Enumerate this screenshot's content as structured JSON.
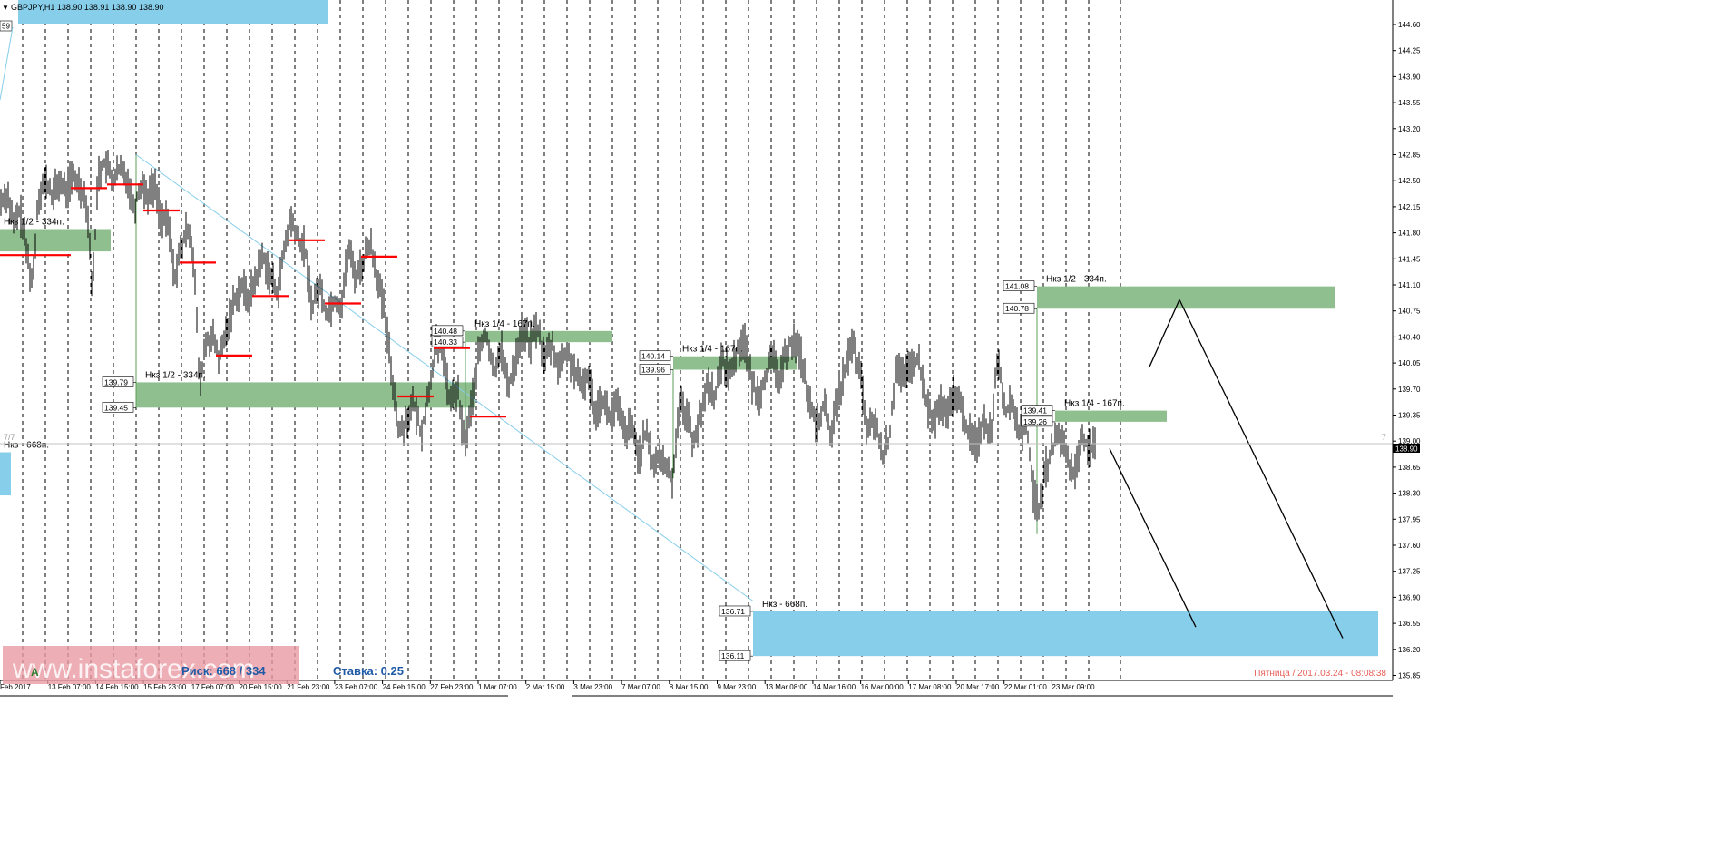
{
  "window": {
    "symbol_line": "GBPJPY,H1  138.90 138.91 138.90 138.90",
    "menu_icon": "triangle-down-icon"
  },
  "watermark": {
    "site": "www.instaforex.com",
    "bottom_text_left": "А",
    "bottom_text_risk": "Риск: 668 / 334",
    "bottom_text_rate": "Ставка: 0.25"
  },
  "timestamp": "Пятница  /  2017.03.24  -  08:08:38",
  "edge_labels": {
    "top_left_value": "59",
    "left_marker": "7/7",
    "right_marker": "7"
  },
  "price_axis": {
    "ticks": [
      "144.60",
      "144.25",
      "143.90",
      "143.55",
      "143.20",
      "142.85",
      "142.50",
      "142.15",
      "141.80",
      "141.45",
      "141.10",
      "140.75",
      "140.40",
      "140.05",
      "139.70",
      "139.35",
      "139.00",
      "138.65",
      "138.30",
      "137.95",
      "137.60",
      "137.25",
      "136.90",
      "136.55",
      "136.20",
      "135.85"
    ],
    "current_price": "138.90",
    "range": [
      135.85,
      144.85
    ]
  },
  "time_axis": {
    "labels": [
      "Feb 2017",
      "13 Feb 07:00",
      "14 Feb 15:00",
      "15 Feb 23:00",
      "17 Feb 07:00",
      "20 Feb 15:00",
      "21 Feb 23:00",
      "23 Feb 07:00",
      "24 Feb 15:00",
      "27 Feb 23:00",
      "1 Mar 07:00",
      "2 Mar 15:00",
      "3 Mar 23:00",
      "7 Mar 07:00",
      "8 Mar 15:00",
      "9 Mar 23:00",
      "13 Mar 08:00",
      "14 Mar 16:00",
      "16 Mar 00:00",
      "17 Mar 08:00",
      "20 Mar 17:00",
      "22 Mar 01:00",
      "23 Mar 09:00"
    ]
  },
  "zones": [
    {
      "label": "Нкз 1/2 - 334п.",
      "top": "",
      "bottom": "",
      "from": 0,
      "to": 122,
      "hi": 141.85,
      "lo": 141.55,
      "color": "#8fbf8f"
    },
    {
      "label": "Нкз 1/2 - 334п.",
      "top": "139.79",
      "bottom": "139.45",
      "from": 150,
      "to": 524,
      "hi": 139.79,
      "lo": 139.45,
      "color": "#8fbf8f"
    },
    {
      "label": "Нкз 1/4 - 167п.",
      "top": "140.48",
      "bottom": "140.33",
      "from": 513,
      "to": 675,
      "hi": 140.48,
      "lo": 140.33,
      "color": "#8fbf8f"
    },
    {
      "label": "Нкз 1/4 - 167п.",
      "top": "140.14",
      "bottom": "139.96",
      "from": 742,
      "to": 878,
      "hi": 140.14,
      "lo": 139.96,
      "color": "#8fbf8f"
    },
    {
      "label": "Нкз 1/2 - 334п.",
      "top": "141.08",
      "bottom": "140.78",
      "from": 1143,
      "to": 1471,
      "hi": 141.08,
      "lo": 140.78,
      "color": "#8fbf8f"
    },
    {
      "label": "Нкз 1/4 - 167п.",
      "top": "139.41",
      "bottom": "139.26",
      "from": 1163,
      "to": 1286,
      "hi": 139.41,
      "lo": 139.26,
      "color": "#8fbf8f"
    },
    {
      "label": "Нкз - 668п.",
      "top": "136.71",
      "bottom": "136.11",
      "from": 830,
      "to": 1519,
      "hi": 136.71,
      "lo": 136.11,
      "color": "#87ceeb"
    },
    {
      "label": "Нкз - 668п.",
      "top": "",
      "bottom": "",
      "from": 0,
      "to": 12,
      "hi": 138.85,
      "lo": 138.27,
      "color": "#87ceeb"
    }
  ],
  "chart_data": {
    "type": "candlestick",
    "title": "GBPJPY,H1",
    "ylim": [
      135.85,
      144.85
    ],
    "grid": "vertical dashed",
    "price_path": [
      [
        0,
        142.2
      ],
      [
        8,
        142.35
      ],
      [
        15,
        141.9
      ],
      [
        22,
        142.1
      ],
      [
        30,
        141.5
      ],
      [
        36,
        141.1
      ],
      [
        42,
        142.3
      ],
      [
        50,
        142.5
      ],
      [
        58,
        142.3
      ],
      [
        66,
        142.5
      ],
      [
        72,
        142.35
      ],
      [
        80,
        142.55
      ],
      [
        88,
        142.45
      ],
      [
        96,
        142.2
      ],
      [
        102,
        141.0
      ],
      [
        108,
        142.6
      ],
      [
        116,
        142.75
      ],
      [
        124,
        142.5
      ],
      [
        132,
        142.65
      ],
      [
        140,
        142.55
      ],
      [
        148,
        142.15
      ],
      [
        156,
        142.5
      ],
      [
        162,
        142.3
      ],
      [
        170,
        142.45
      ],
      [
        178,
        142.0
      ],
      [
        186,
        141.9
      ],
      [
        192,
        141.2
      ],
      [
        200,
        141.6
      ],
      [
        208,
        141.9
      ],
      [
        214,
        141.4
      ],
      [
        220,
        139.7
      ],
      [
        226,
        140.3
      ],
      [
        234,
        140.4
      ],
      [
        242,
        140.1
      ],
      [
        250,
        140.5
      ],
      [
        258,
        140.9
      ],
      [
        266,
        141.1
      ],
      [
        274,
        140.9
      ],
      [
        282,
        141.2
      ],
      [
        290,
        141.5
      ],
      [
        298,
        141.2
      ],
      [
        306,
        141.0
      ],
      [
        314,
        141.6
      ],
      [
        320,
        142.0
      ],
      [
        328,
        141.7
      ],
      [
        336,
        141.6
      ],
      [
        344,
        140.8
      ],
      [
        352,
        141.1
      ],
      [
        360,
        140.7
      ],
      [
        368,
        140.9
      ],
      [
        376,
        140.8
      ],
      [
        384,
        141.6
      ],
      [
        392,
        141.2
      ],
      [
        400,
        141.4
      ],
      [
        408,
        141.7
      ],
      [
        416,
        141.2
      ],
      [
        424,
        140.7
      ],
      [
        432,
        139.9
      ],
      [
        440,
        139.1
      ],
      [
        448,
        139.3
      ],
      [
        456,
        139.5
      ],
      [
        464,
        139.1
      ],
      [
        472,
        139.6
      ],
      [
        480,
        140.3
      ],
      [
        488,
        140.2
      ],
      [
        496,
        139.5
      ],
      [
        504,
        139.7
      ],
      [
        512,
        138.95
      ],
      [
        520,
        139.5
      ],
      [
        528,
        140.2
      ],
      [
        536,
        140.45
      ],
      [
        544,
        139.9
      ],
      [
        552,
        140.3
      ],
      [
        560,
        139.7
      ],
      [
        568,
        140.1
      ],
      [
        576,
        140.5
      ],
      [
        584,
        140.3
      ],
      [
        592,
        140.55
      ],
      [
        600,
        140.1
      ],
      [
        608,
        140.3
      ],
      [
        616,
        140.0
      ],
      [
        624,
        140.2
      ],
      [
        632,
        140.0
      ],
      [
        640,
        139.7
      ],
      [
        648,
        139.9
      ],
      [
        656,
        139.4
      ],
      [
        664,
        139.6
      ],
      [
        672,
        139.3
      ],
      [
        680,
        139.5
      ],
      [
        688,
        139.1
      ],
      [
        696,
        139.2
      ],
      [
        704,
        138.8
      ],
      [
        712,
        139.1
      ],
      [
        720,
        138.7
      ],
      [
        728,
        138.8
      ],
      [
        736,
        138.6
      ],
      [
        742,
        138.5
      ],
      [
        748,
        139.5
      ],
      [
        756,
        139.4
      ],
      [
        764,
        139.0
      ],
      [
        772,
        139.3
      ],
      [
        780,
        139.8
      ],
      [
        788,
        139.6
      ],
      [
        796,
        140.1
      ],
      [
        804,
        139.9
      ],
      [
        812,
        140.2
      ],
      [
        820,
        140.4
      ],
      [
        828,
        139.8
      ],
      [
        836,
        139.6
      ],
      [
        844,
        139.9
      ],
      [
        852,
        140.1
      ],
      [
        860,
        139.8
      ],
      [
        868,
        140.3
      ],
      [
        876,
        140.35
      ],
      [
        884,
        140.1
      ],
      [
        892,
        139.5
      ],
      [
        900,
        139.2
      ],
      [
        908,
        139.5
      ],
      [
        916,
        139.1
      ],
      [
        924,
        139.6
      ],
      [
        932,
        140.0
      ],
      [
        940,
        140.3
      ],
      [
        948,
        139.9
      ],
      [
        956,
        139.1
      ],
      [
        964,
        139.3
      ],
      [
        972,
        138.8
      ],
      [
        980,
        139.0
      ],
      [
        988,
        140.1
      ],
      [
        996,
        139.8
      ],
      [
        1004,
        140.0
      ],
      [
        1012,
        140.1
      ],
      [
        1020,
        139.6
      ],
      [
        1028,
        139.2
      ],
      [
        1036,
        139.5
      ],
      [
        1044,
        139.3
      ],
      [
        1052,
        139.7
      ],
      [
        1060,
        139.4
      ],
      [
        1068,
        139.1
      ],
      [
        1076,
        138.95
      ],
      [
        1084,
        139.3
      ],
      [
        1092,
        139.1
      ],
      [
        1100,
        140.2
      ],
      [
        1108,
        139.4
      ],
      [
        1116,
        139.5
      ],
      [
        1124,
        139.1
      ],
      [
        1132,
        139.2
      ],
      [
        1140,
        138.2
      ],
      [
        1146,
        138.1
      ],
      [
        1152,
        138.6
      ],
      [
        1160,
        138.9
      ],
      [
        1168,
        139.1
      ],
      [
        1176,
        138.8
      ],
      [
        1184,
        138.5
      ],
      [
        1192,
        139.1
      ],
      [
        1200,
        138.9
      ],
      [
        1208,
        138.9
      ]
    ],
    "vertical_gridlines": [
      25,
      50,
      75,
      100,
      125,
      150,
      175,
      200,
      225,
      250,
      275,
      300,
      325,
      350,
      375,
      400,
      425,
      450,
      475,
      500,
      525,
      550,
      575,
      600,
      625,
      650,
      675,
      700,
      725,
      750,
      775,
      800,
      825,
      850,
      875,
      900,
      925,
      950,
      975,
      1000,
      1025,
      1050,
      1075,
      1100,
      1125,
      1150,
      1175,
      1200,
      1235
    ],
    "red_levels": [
      {
        "from": 0,
        "to": 78,
        "price": 141.5
      },
      {
        "from": 78,
        "to": 118,
        "price": 142.4
      },
      {
        "from": 118,
        "to": 158,
        "price": 142.45
      },
      {
        "from": 158,
        "to": 198,
        "price": 142.1
      },
      {
        "from": 198,
        "to": 238,
        "price": 141.4
      },
      {
        "from": 238,
        "to": 278,
        "price": 140.15
      },
      {
        "from": 278,
        "to": 318,
        "price": 140.95
      },
      {
        "from": 318,
        "to": 358,
        "price": 141.7
      },
      {
        "from": 358,
        "to": 398,
        "price": 140.85
      },
      {
        "from": 398,
        "to": 438,
        "price": 141.48
      },
      {
        "from": 438,
        "to": 478,
        "price": 139.6
      },
      {
        "from": 478,
        "to": 518,
        "price": 140.25
      },
      {
        "from": 518,
        "to": 558,
        "price": 139.33
      }
    ],
    "trendline": {
      "from": [
        150,
        142.85
      ],
      "to": [
        830,
        136.85
      ],
      "color": "#87ceeb"
    },
    "forecast_lines": [
      {
        "from": [
          1223,
          138.9
        ],
        "to": [
          1318,
          136.5
        ]
      },
      {
        "from": [
          1267,
          140.0
        ],
        "to": [
          1300,
          140.9
        ]
      },
      {
        "from": [
          1300,
          140.9
        ],
        "to": [
          1480,
          136.35
        ]
      }
    ]
  }
}
